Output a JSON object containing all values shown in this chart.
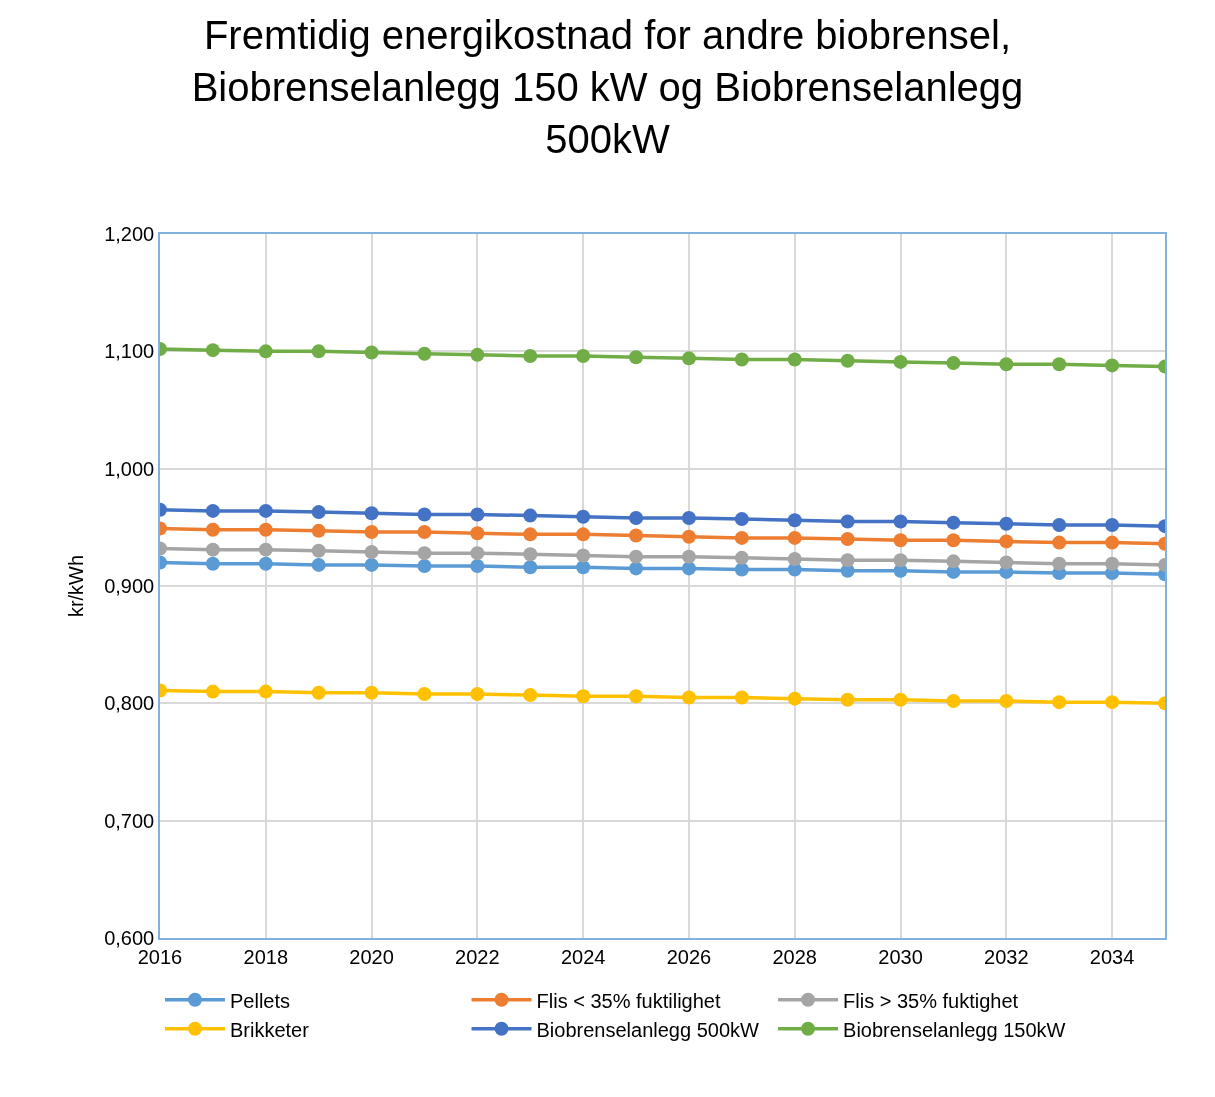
{
  "chart_data": {
    "type": "line",
    "title": "Fremtidig energikostnad for andre biobrensel, Biobrenselanlegg 150 kW og Biobrenselanlegg 500kW",
    "ylabel": "kr/kWh",
    "x": [
      2016,
      2017,
      2018,
      2019,
      2020,
      2021,
      2022,
      2023,
      2024,
      2025,
      2026,
      2027,
      2028,
      2029,
      2030,
      2031,
      2032,
      2033,
      2034,
      2035
    ],
    "xlim": [
      2016,
      2035
    ],
    "xticks": [
      2016,
      2018,
      2020,
      2022,
      2024,
      2026,
      2028,
      2030,
      2032,
      2034
    ],
    "ylim": [
      0.6,
      1.2
    ],
    "yticks": [
      {
        "value": 0.6,
        "label": "0,600"
      },
      {
        "value": 0.7,
        "label": "0,700"
      },
      {
        "value": 0.8,
        "label": "0,800"
      },
      {
        "value": 0.9,
        "label": "0,900"
      },
      {
        "value": 1.0,
        "label": "1,000"
      },
      {
        "value": 1.1,
        "label": "1,100"
      },
      {
        "value": 1.2,
        "label": "1,200"
      }
    ],
    "grid": true,
    "legend": "bottom",
    "marker": "circle",
    "line_style": "solid",
    "series": [
      {
        "name": "Pellets",
        "color": "#5b9bd5",
        "values": [
          0.92,
          0.919,
          0.919,
          0.918,
          0.918,
          0.917,
          0.917,
          0.916,
          0.916,
          0.915,
          0.915,
          0.914,
          0.914,
          0.913,
          0.913,
          0.912,
          0.912,
          0.911,
          0.911,
          0.91
        ]
      },
      {
        "name": "Flis < 35% fuktilighet",
        "color": "#ed7d31",
        "values": [
          0.949,
          0.948,
          0.948,
          0.947,
          0.946,
          0.946,
          0.945,
          0.944,
          0.944,
          0.943,
          0.942,
          0.941,
          0.941,
          0.94,
          0.939,
          0.939,
          0.938,
          0.937,
          0.937,
          0.936
        ]
      },
      {
        "name": "Flis > 35% fuktighet",
        "color": "#a5a5a5",
        "values": [
          0.932,
          0.931,
          0.931,
          0.93,
          0.929,
          0.928,
          0.928,
          0.927,
          0.926,
          0.925,
          0.925,
          0.924,
          0.923,
          0.922,
          0.922,
          0.921,
          0.92,
          0.919,
          0.919,
          0.918
        ]
      },
      {
        "name": "Brikketer",
        "color": "#ffc000",
        "values": [
          0.811,
          0.81,
          0.81,
          0.809,
          0.809,
          0.808,
          0.808,
          0.807,
          0.806,
          0.806,
          0.805,
          0.805,
          0.804,
          0.803,
          0.803,
          0.802,
          0.802,
          0.801,
          0.801,
          0.8
        ]
      },
      {
        "name": "Biobrenselanlegg 500kW",
        "color": "#4472c4",
        "values": [
          0.965,
          0.964,
          0.964,
          0.963,
          0.962,
          0.961,
          0.961,
          0.96,
          0.959,
          0.958,
          0.958,
          0.957,
          0.956,
          0.955,
          0.955,
          0.954,
          0.953,
          0.952,
          0.952,
          0.951
        ]
      },
      {
        "name": "Biobrenselanlegg 150kW",
        "color": "#70ad47",
        "values": [
          1.102,
          1.101,
          1.1,
          1.1,
          1.099,
          1.098,
          1.097,
          1.096,
          1.096,
          1.095,
          1.094,
          1.093,
          1.093,
          1.092,
          1.091,
          1.09,
          1.089,
          1.089,
          1.088,
          1.087
        ]
      }
    ]
  }
}
